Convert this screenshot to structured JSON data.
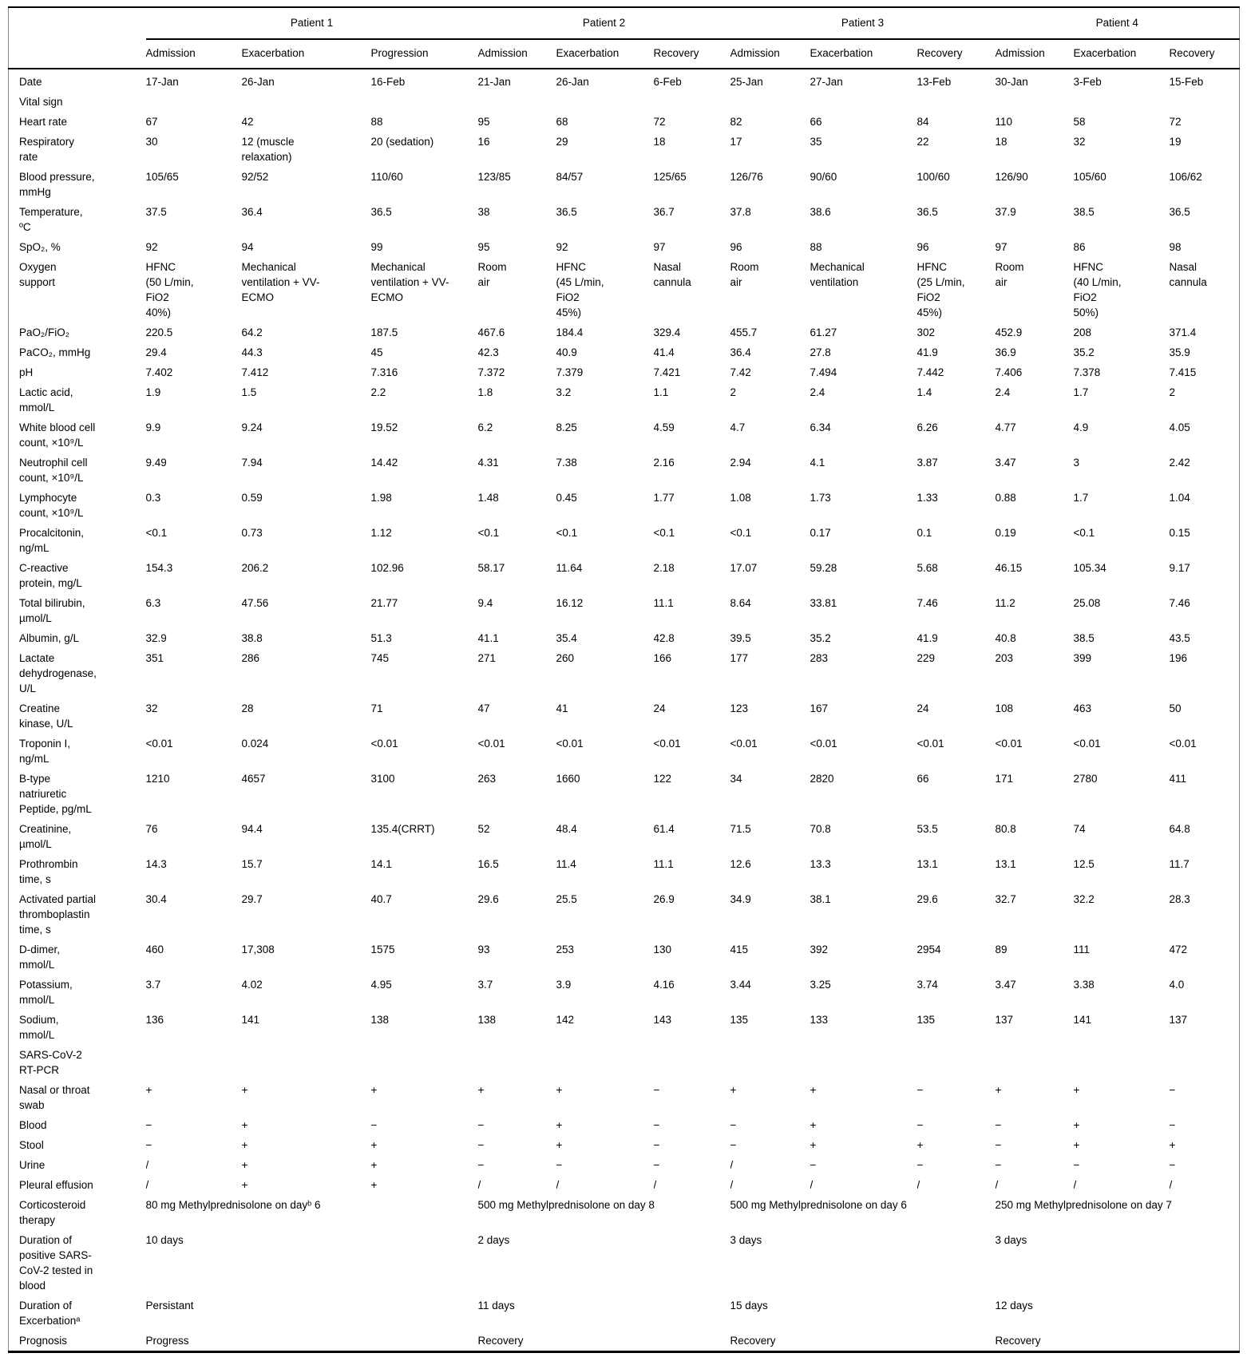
{
  "header": {
    "corner": "",
    "patients": [
      "Patient 1",
      "Patient 2",
      "Patient 3",
      "Patient 4"
    ],
    "stages": [
      "Admission",
      "Exacerbation",
      "Progression",
      "Admission",
      "Exacerbation",
      "Recovery",
      "Admission",
      "Exacerbation",
      "Recovery",
      "Admission",
      "Exacerbation",
      "Recovery"
    ]
  },
  "rows": [
    {
      "label": "Date",
      "type": "data",
      "values": [
        "17-Jan",
        "26-Jan",
        "16-Feb",
        "21-Jan",
        "26-Jan",
        "6-Feb",
        "25-Jan",
        "27-Jan",
        "13-Feb",
        "30-Jan",
        "3-Feb",
        "15-Feb"
      ]
    },
    {
      "label": "Vital sign",
      "type": "section"
    },
    {
      "label": "Heart rate",
      "type": "data",
      "values": [
        "67",
        "42",
        "88",
        "95",
        "68",
        "72",
        "82",
        "66",
        "84",
        "110",
        "58",
        "72"
      ]
    },
    {
      "label": "Respiratory\nrate",
      "type": "data",
      "values": [
        "30",
        "12 (muscle\nrelaxation)",
        "20 (sedation)",
        "16",
        "29",
        "18",
        "17",
        "35",
        "22",
        "18",
        "32",
        "19"
      ]
    },
    {
      "label": "Blood pressure,\nmmHg",
      "type": "data",
      "values": [
        "105/65",
        "92/52",
        "110/60",
        "123/85",
        "84/57",
        "125/65",
        "126/76",
        "90/60",
        "100/60",
        "126/90",
        "105/60",
        "106/62"
      ]
    },
    {
      "label": "Temperature,\nºC",
      "type": "data",
      "values": [
        "37.5",
        "36.4",
        "36.5",
        "38",
        "36.5",
        "36.7",
        "37.8",
        "38.6",
        "36.5",
        "37.9",
        "38.5",
        "36.5"
      ]
    },
    {
      "label": "SpO₂, %",
      "type": "data",
      "values": [
        "92",
        "94",
        "99",
        "95",
        "92",
        "97",
        "96",
        "88",
        "96",
        "97",
        "86",
        "98"
      ]
    },
    {
      "label": "Oxygen\nsupport",
      "type": "data",
      "values": [
        "HFNC\n(50 L/min,\nFiO2\n40%)",
        "Mechanical\nventilation + VV-\nECMO",
        "Mechanical\nventilation + VV-\nECMO",
        "Room\nair",
        "HFNC\n(45 L/min,\nFiO2\n45%)",
        "Nasal\ncannula",
        "Room\nair",
        "Mechanical\nventilation",
        "HFNC\n(25 L/min,\nFiO2\n45%)",
        "Room\nair",
        "HFNC\n(40 L/min,\nFiO2\n50%)",
        "Nasal\ncannula"
      ]
    },
    {
      "label": "PaO₂/FiO₂",
      "type": "data",
      "values": [
        "220.5",
        "64.2",
        "187.5",
        "467.6",
        "184.4",
        "329.4",
        "455.7",
        "61.27",
        "302",
        "452.9",
        "208",
        "371.4"
      ]
    },
    {
      "label": "PaCO₂, mmHg",
      "type": "data",
      "values": [
        "29.4",
        "44.3",
        "45",
        "42.3",
        "40.9",
        "41.4",
        "36.4",
        "27.8",
        "41.9",
        "36.9",
        "35.2",
        "35.9"
      ]
    },
    {
      "label": "pH",
      "type": "data",
      "values": [
        "7.402",
        "7.412",
        "7.316",
        "7.372",
        "7.379",
        "7.421",
        "7.42",
        "7.494",
        "7.442",
        "7.406",
        "7.378",
        "7.415"
      ]
    },
    {
      "label": "Lactic acid,\nmmol/L",
      "type": "data",
      "values": [
        "1.9",
        "1.5",
        "2.2",
        "1.8",
        "3.2",
        "1.1",
        "2",
        "2.4",
        "1.4",
        "2.4",
        "1.7",
        "2"
      ]
    },
    {
      "label": "White blood cell\ncount, ×10⁹/L",
      "type": "data",
      "values": [
        "9.9",
        "9.24",
        "19.52",
        "6.2",
        "8.25",
        "4.59",
        "4.7",
        "6.34",
        "6.26",
        "4.77",
        "4.9",
        "4.05"
      ]
    },
    {
      "label": "Neutrophil cell\ncount, ×10⁹/L",
      "type": "data",
      "values": [
        "9.49",
        "7.94",
        "14.42",
        "4.31",
        "7.38",
        "2.16",
        "2.94",
        "4.1",
        "3.87",
        "3.47",
        "3",
        "2.42"
      ]
    },
    {
      "label": "Lymphocyte\ncount, ×10⁹/L",
      "type": "data",
      "values": [
        "0.3",
        "0.59",
        "1.98",
        "1.48",
        "0.45",
        "1.77",
        "1.08",
        "1.73",
        "1.33",
        "0.88",
        "1.7",
        "1.04"
      ]
    },
    {
      "label": "Procalcitonin,\nng/mL",
      "type": "data",
      "values": [
        "<0.1",
        "0.73",
        "1.12",
        "<0.1",
        "<0.1",
        "<0.1",
        "<0.1",
        "0.17",
        "0.1",
        "0.19",
        "<0.1",
        "0.15"
      ]
    },
    {
      "label": "C-reactive\nprotein, mg/L",
      "type": "data",
      "values": [
        "154.3",
        "206.2",
        "102.96",
        "58.17",
        "11.64",
        "2.18",
        "17.07",
        "59.28",
        "5.68",
        "46.15",
        "105.34",
        "9.17"
      ]
    },
    {
      "label": "Total bilirubin,\nµmol/L",
      "type": "data",
      "values": [
        "6.3",
        "47.56",
        "21.77",
        "9.4",
        "16.12",
        "11.1",
        "8.64",
        "33.81",
        "7.46",
        "11.2",
        "25.08",
        "7.46"
      ]
    },
    {
      "label": "Albumin, g/L",
      "type": "data",
      "values": [
        "32.9",
        "38.8",
        "51.3",
        "41.1",
        "35.4",
        "42.8",
        "39.5",
        "35.2",
        "41.9",
        "40.8",
        "38.5",
        "43.5"
      ]
    },
    {
      "label": "Lactate\ndehydrogenase,\nU/L",
      "type": "data",
      "values": [
        "351",
        "286",
        "745",
        "271",
        "260",
        "166",
        "177",
        "283",
        "229",
        "203",
        "399",
        "196"
      ]
    },
    {
      "label": "Creatine\nkinase, U/L",
      "type": "data",
      "values": [
        "32",
        "28",
        "71",
        "47",
        "41",
        "24",
        "123",
        "167",
        "24",
        "108",
        "463",
        "50"
      ]
    },
    {
      "label": "Troponin I,\nng/mL",
      "type": "data",
      "values": [
        "<0.01",
        "0.024",
        "<0.01",
        "<0.01",
        "<0.01",
        "<0.01",
        "<0.01",
        "<0.01",
        "<0.01",
        "<0.01",
        "<0.01",
        "<0.01"
      ]
    },
    {
      "label": "B-type\nnatriuretic\nPeptide, pg/mL",
      "type": "data",
      "values": [
        "1210",
        "4657",
        "3100",
        "263",
        "1660",
        "122",
        "34",
        "2820",
        "66",
        "171",
        "2780",
        "411"
      ]
    },
    {
      "label": "Creatinine,\nµmol/L",
      "type": "data",
      "values": [
        "76",
        "94.4",
        "135.4(CRRT)",
        "52",
        "48.4",
        "61.4",
        "71.5",
        "70.8",
        "53.5",
        "80.8",
        "74",
        "64.8"
      ]
    },
    {
      "label": "Prothrombin\ntime, s",
      "type": "data",
      "values": [
        "14.3",
        "15.7",
        "14.1",
        "16.5",
        "11.4",
        "11.1",
        "12.6",
        "13.3",
        "13.1",
        "13.1",
        "12.5",
        "11.7"
      ]
    },
    {
      "label": "Activated partial\nthromboplastin\ntime, s",
      "type": "data",
      "values": [
        "30.4",
        "29.7",
        "40.7",
        "29.6",
        "25.5",
        "26.9",
        "34.9",
        "38.1",
        "29.6",
        "32.7",
        "32.2",
        "28.3"
      ]
    },
    {
      "label": "D-dimer,\nmmol/L",
      "type": "data",
      "values": [
        "460",
        "17,308",
        "1575",
        "93",
        "253",
        "130",
        "415",
        "392",
        "2954",
        "89",
        "111",
        "472"
      ]
    },
    {
      "label": "Potassium,\nmmol/L",
      "type": "data",
      "values": [
        "3.7",
        "4.02",
        "4.95",
        "3.7",
        "3.9",
        "4.16",
        "3.44",
        "3.25",
        "3.74",
        "3.47",
        "3.38",
        "4.0"
      ]
    },
    {
      "label": "Sodium,\nmmol/L",
      "type": "data",
      "values": [
        "136",
        "141",
        "138",
        "138",
        "142",
        "143",
        "135",
        "133",
        "135",
        "137",
        "141",
        "137"
      ]
    },
    {
      "label": "SARS-CoV-2\nRT-PCR",
      "type": "section"
    },
    {
      "label": "Nasal or throat\nswab",
      "type": "data",
      "values": [
        "+",
        "+",
        "+",
        "+",
        "+",
        "−",
        "+",
        "+",
        "−",
        "+",
        "+",
        "−"
      ]
    },
    {
      "label": "Blood",
      "type": "data",
      "values": [
        "−",
        "+",
        "−",
        "−",
        "+",
        "−",
        "−",
        "+",
        "−",
        "−",
        "+",
        "−"
      ]
    },
    {
      "label": "Stool",
      "type": "data",
      "values": [
        "−",
        "+",
        "+",
        "−",
        "+",
        "−",
        "−",
        "+",
        "+",
        "−",
        "+",
        "+"
      ]
    },
    {
      "label": "Urine",
      "type": "data",
      "values": [
        "/",
        "+",
        "+",
        "−",
        "−",
        "−",
        "/",
        "−",
        "−",
        "−",
        "−",
        "−"
      ]
    },
    {
      "label": "Pleural effusion",
      "type": "data",
      "values": [
        "/",
        "+",
        "+",
        "/",
        "/",
        "/",
        "/",
        "/",
        "/",
        "/",
        "/",
        "/"
      ]
    },
    {
      "label": "Corticosteroid\ntherapy",
      "type": "span",
      "values": [
        "80 mg Methylprednisolone on dayᵇ 6",
        "500 mg Methylprednisolone on day 8",
        "500 mg Methylprednisolone on day 6",
        "250 mg Methylprednisolone on day 7"
      ]
    },
    {
      "label": "Duration of\npositive SARS-\nCoV-2 tested in\nblood",
      "type": "span",
      "values": [
        "10 days",
        "2 days",
        "3 days",
        "3 days"
      ]
    },
    {
      "label": "Duration of\nExcerbationᵃ",
      "type": "span",
      "values": [
        "Persistant",
        "11 days",
        "15 days",
        "12 days"
      ]
    },
    {
      "label": "Prognosis",
      "type": "span",
      "values": [
        "Progress",
        "Recovery",
        "Recovery",
        "Recovery"
      ]
    }
  ]
}
